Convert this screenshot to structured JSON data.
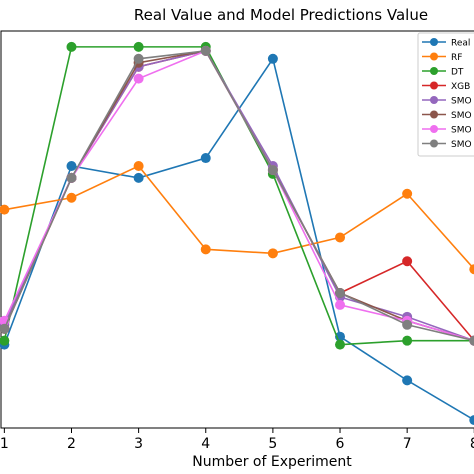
{
  "chart_data": {
    "type": "line",
    "title": "Real Value and Model Predictions Value",
    "xlabel": "Number of Experiment",
    "ylabel": "",
    "x": [
      1,
      2,
      3,
      4,
      5,
      6,
      7,
      8
    ],
    "x_tick_labels": [
      "1",
      "2",
      "3",
      "4",
      "5",
      "6",
      "7",
      "8"
    ],
    "xlim": [
      0.95,
      8.1
    ],
    "ylim": [
      0,
      1
    ],
    "grid": false,
    "legend_position": "top-right",
    "series": [
      {
        "name": "Real",
        "color": "#1f77b4",
        "values": [
          0.21,
          0.66,
          0.63,
          0.68,
          0.93,
          0.23,
          0.12,
          0.02
        ]
      },
      {
        "name": "RF",
        "color": "#ff7f0e",
        "values": [
          0.55,
          0.58,
          0.66,
          0.45,
          0.44,
          0.48,
          0.59,
          0.4
        ]
      },
      {
        "name": "DT",
        "color": "#2ca02c",
        "values": [
          0.22,
          0.96,
          0.96,
          0.96,
          0.64,
          0.21,
          0.22,
          0.22
        ]
      },
      {
        "name": "XGB",
        "color": "#d62728",
        "values": [
          0.25,
          0.63,
          0.91,
          0.95,
          0.65,
          0.34,
          0.42,
          0.22
        ]
      },
      {
        "name": "SMO",
        "color": "#9467bd",
        "values": [
          0.26,
          0.63,
          0.91,
          0.95,
          0.66,
          0.33,
          0.28,
          0.22
        ]
      },
      {
        "name": "SMO",
        "color": "#8c564b",
        "values": [
          0.25,
          0.63,
          0.92,
          0.95,
          0.65,
          0.34,
          0.27,
          0.22
        ]
      },
      {
        "name": "SMO",
        "color": "#ef6fef",
        "values": [
          0.27,
          0.63,
          0.88,
          0.95,
          0.65,
          0.31,
          0.27,
          0.22
        ]
      },
      {
        "name": "SMO",
        "color": "#7f7f7f",
        "values": [
          0.25,
          0.63,
          0.93,
          0.95,
          0.65,
          0.34,
          0.26,
          0.22
        ]
      }
    ]
  }
}
